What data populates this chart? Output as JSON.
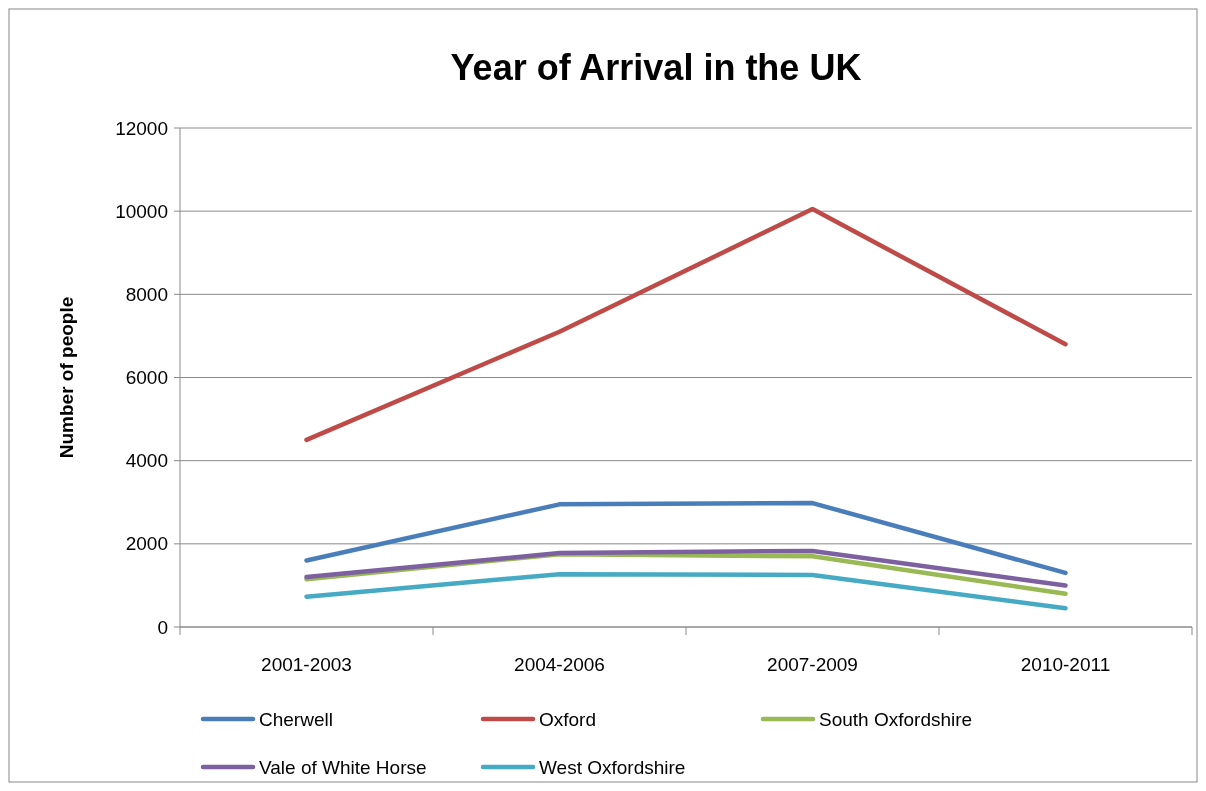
{
  "chart_data": {
    "type": "line",
    "title": "Year of Arrival in the UK",
    "ylabel": "Number of people",
    "categories": [
      "2001-2003",
      "2004-2006",
      "2007-2009",
      "2010-2011"
    ],
    "series": [
      {
        "name": "Cherwell",
        "color": "#4a7ebb",
        "values": [
          1600,
          2950,
          2980,
          1300
        ]
      },
      {
        "name": "Oxford",
        "color": "#be4b48",
        "values": [
          4500,
          7100,
          10050,
          6800
        ]
      },
      {
        "name": "South Oxfordshire",
        "color": "#98b954",
        "values": [
          1150,
          1750,
          1700,
          800
        ]
      },
      {
        "name": "Vale of White Horse",
        "color": "#7d60a0",
        "values": [
          1200,
          1780,
          1830,
          1000
        ]
      },
      {
        "name": "West Oxfordshire",
        "color": "#46aac5",
        "values": [
          730,
          1270,
          1250,
          450
        ]
      }
    ],
    "ylim": [
      0,
      12000
    ],
    "yticks": [
      0,
      2000,
      4000,
      6000,
      8000,
      10000,
      12000
    ],
    "grid": "y",
    "legend": "bottom",
    "marker": "none",
    "line_style": "solid"
  }
}
